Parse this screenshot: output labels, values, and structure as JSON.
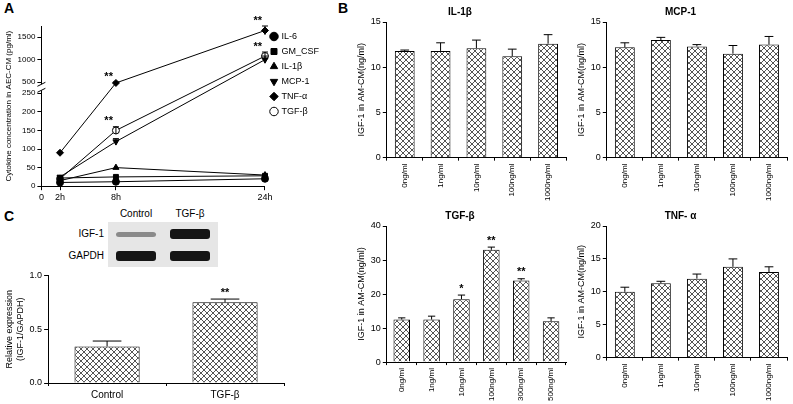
{
  "chart_data": [
    {
      "panel": "A",
      "type": "line",
      "y_label": "Cytokine concentration in AEC-CM (pg/ml)",
      "x": [
        2,
        8,
        24
      ],
      "xlim": [
        0,
        24
      ],
      "xticks": [
        0,
        {
          "value": 2,
          "label": "2h"
        },
        {
          "value": 8,
          "label": "8h"
        },
        {
          "value": 24,
          "label": "24h"
        }
      ],
      "ylim": [
        0,
        1750
      ],
      "yticks": [
        0,
        50,
        100,
        150,
        200,
        250,
        500,
        1000,
        1500
      ],
      "grid": false,
      "legend": "right",
      "series": [
        {
          "name": "IL-6",
          "color": "#000000",
          "marker": "circle",
          "values": [
            10,
            12,
            20
          ]
        },
        {
          "name": "GM_CSF",
          "color": "#000000",
          "marker": "square",
          "values": [
            22,
            25,
            28
          ]
        },
        {
          "name": "IL-1β",
          "color": "#000000",
          "marker": "triangle",
          "values": [
            15,
            50,
            30
          ]
        },
        {
          "name": "MCP-1",
          "color": "#000000",
          "marker": "triangle_down",
          "values": [
            25,
            120,
            1000
          ],
          "errors": [
            null,
            8,
            80
          ]
        },
        {
          "name": "TNF-α",
          "color": "#000000",
          "marker": "diamond",
          "values": [
            90,
            480,
            1650
          ],
          "errors": [
            null,
            20,
            100
          ]
        },
        {
          "name": "TGF-β",
          "color": "#000000",
          "marker": "circle_open",
          "values": [
            20,
            150,
            1080
          ],
          "errors": [
            null,
            10,
            90
          ]
        }
      ],
      "annotations": [
        {
          "x": 8,
          "y": 480,
          "text": "**"
        },
        {
          "x": 8,
          "y": 150,
          "text": "**"
        },
        {
          "x": 24,
          "y": 1650,
          "text": "**"
        },
        {
          "x": 24,
          "y": 1080,
          "text": "**"
        }
      ]
    },
    {
      "panel": "B",
      "type": "bar",
      "title": "IL-1β",
      "y_label": "IGF-1 in AM-CM(ng/ml)",
      "categories": [
        "0ng/ml",
        "1ng/ml",
        "10ng/ml",
        "100ng/ml",
        "1000ng/ml"
      ],
      "values": [
        11.8,
        11.8,
        12.1,
        11.2,
        12.6
      ],
      "errors": [
        0.1,
        0.9,
        0.9,
        0.8,
        1.0
      ],
      "color": "#555555",
      "ylim": [
        0,
        15
      ],
      "yticks": [
        0,
        5,
        10,
        15
      ],
      "grid": false
    },
    {
      "type": "bar",
      "title": "MCP-1",
      "y_label": "IGF-1 in AM-CM(ng/ml)",
      "categories": [
        "0ng/ml",
        "1ng/ml",
        "10ng/ml",
        "100ng/ml",
        "1000ng/ml"
      ],
      "values": [
        12.2,
        13.0,
        12.3,
        11.5,
        12.5
      ],
      "errors": [
        0.5,
        0.3,
        0.2,
        0.9,
        0.9
      ],
      "color": "#555555",
      "ylim": [
        0,
        15
      ],
      "yticks": [
        0,
        5,
        10,
        15
      ],
      "grid": false
    },
    {
      "type": "bar",
      "title": "TGF-β",
      "y_label": "IGF-1 in AM-CM(ng/ml)",
      "categories": [
        "0ng/ml",
        "1ng/ml",
        "10ng/ml",
        "100ng/ml",
        "300ng/ml",
        "500ng/ml"
      ],
      "values": [
        12.5,
        12.5,
        18.5,
        33,
        24,
        12
      ],
      "errors": [
        0.5,
        1.0,
        1.2,
        0.8,
        0.5,
        1.0
      ],
      "color": "#555555",
      "ylim": [
        0,
        40
      ],
      "yticks": [
        0,
        10,
        20,
        30,
        40
      ],
      "grid": false,
      "annotations": [
        {
          "x": "10ng/ml",
          "y": 18.5,
          "text": "*"
        },
        {
          "x": "100ng/ml",
          "y": 33,
          "text": "**"
        },
        {
          "x": "300ng/ml",
          "y": 24,
          "text": "**"
        }
      ]
    },
    {
      "type": "bar",
      "title": "TNF- α",
      "y_label": "IGF-1 in AM-CM(ng/ml)",
      "categories": [
        "0ng/ml",
        "1ng/ml",
        "10ng/ml",
        "100ng/ml",
        "1000ng/ml"
      ],
      "values": [
        10,
        11.3,
        12,
        13.8,
        13
      ],
      "errors": [
        0.7,
        0.3,
        0.7,
        1.2,
        0.8
      ],
      "color": "#555555",
      "ylim": [
        0,
        20
      ],
      "yticks": [
        0,
        5,
        10,
        15,
        20
      ],
      "grid": false
    },
    {
      "panel": "C",
      "type": "bar",
      "y_label": [
        "Relative expression",
        "(IGF-1/GAPDH)"
      ],
      "categories": [
        "Control",
        "TGF-β"
      ],
      "values": [
        0.34,
        0.75
      ],
      "errors": [
        0.05,
        0.03
      ],
      "color": "#555555",
      "ylim": [
        0,
        1
      ],
      "yticks": [
        {
          "value": 0,
          "label": "0.0"
        },
        0.5,
        {
          "value": 1,
          "label": "1.0"
        }
      ],
      "grid": false,
      "annotations": [
        {
          "x": "TGF-β",
          "y": 0.75,
          "text": "**"
        }
      ],
      "blot": {
        "lanes": [
          "Control",
          "TGF-β"
        ],
        "bands": [
          "IGF-1",
          "GAPDH"
        ]
      }
    }
  ]
}
